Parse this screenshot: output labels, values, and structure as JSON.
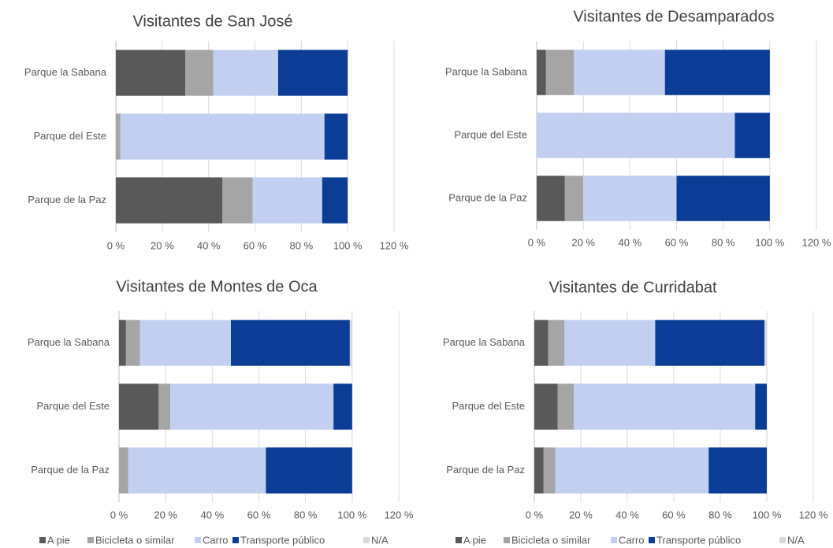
{
  "chart_data": [
    {
      "type": "bar",
      "title": "Visitantes de San José",
      "grid": true,
      "categories": [
        "Parque la Sabana",
        "Parque del Este",
        "Parque de la Paz"
      ],
      "series": [
        {
          "color": "#595959",
          "values": [
            30,
            0,
            46
          ]
        },
        {
          "color": "#a5a5a5",
          "values": [
            12,
            2,
            13
          ]
        },
        {
          "color": "#c3cff0",
          "values": [
            28,
            88,
            30
          ]
        },
        {
          "color": "#0b3c96",
          "values": [
            30,
            10,
            11
          ]
        },
        {
          "color": "#d9d9d9",
          "values": [
            0,
            0,
            0
          ]
        }
      ],
      "xlim": [
        0,
        120
      ],
      "xticks": [
        {
          "value": 0,
          "label": "0 %"
        },
        {
          "value": 20,
          "label": "20 %"
        },
        {
          "value": 40,
          "label": "40 %"
        },
        {
          "value": 60,
          "label": "60 %"
        },
        {
          "value": 80,
          "label": "80 %"
        },
        {
          "value": 100,
          "label": "100 %"
        },
        {
          "value": 120,
          "label": "120 %"
        }
      ]
    },
    {
      "type": "bar",
      "title": "Visitantes de Desamparados",
      "grid": true,
      "categories": [
        "Parque la Sabana",
        "Parque del Este",
        "Parque de la Paz"
      ],
      "series": [
        {
          "color": "#595959",
          "values": [
            4,
            0,
            12
          ]
        },
        {
          "color": "#a5a5a5",
          "values": [
            12,
            0,
            8
          ]
        },
        {
          "color": "#c3cff0",
          "values": [
            39,
            85,
            40
          ]
        },
        {
          "color": "#0b3c96",
          "values": [
            45,
            15,
            40
          ]
        },
        {
          "color": "#d9d9d9",
          "values": [
            0,
            0,
            0
          ]
        }
      ],
      "xlim": [
        0,
        120
      ],
      "xticks": [
        {
          "value": 0,
          "label": "0 %"
        },
        {
          "value": 20,
          "label": "20 %"
        },
        {
          "value": 40,
          "label": "40 %"
        },
        {
          "value": 60,
          "label": "60 %"
        },
        {
          "value": 80,
          "label": "80 %"
        },
        {
          "value": 100,
          "label": "100 %"
        },
        {
          "value": 120,
          "label": "120 %"
        }
      ]
    },
    {
      "type": "bar",
      "title": "Visitantes de Montes de Oca",
      "grid": true,
      "legend": "bottom",
      "categories": [
        "Parque la Sabana",
        "Parque del Este",
        "Parque de la Paz"
      ],
      "series": [
        {
          "name": "A pie",
          "color": "#595959",
          "values": [
            3,
            17,
            0
          ]
        },
        {
          "name": "Bicicleta o similar",
          "color": "#a5a5a5",
          "values": [
            6,
            5,
            4
          ]
        },
        {
          "name": "Carro",
          "color": "#c3cff0",
          "values": [
            39,
            70,
            59
          ]
        },
        {
          "name": "Transporte público",
          "color": "#0b3c96",
          "values": [
            51,
            8,
            37
          ]
        },
        {
          "name": "N/A",
          "color": "#d9d9d9",
          "values": [
            1,
            0,
            0
          ]
        }
      ],
      "xlim": [
        0,
        120
      ],
      "xticks": [
        {
          "value": 0,
          "label": "0 %"
        },
        {
          "value": 20,
          "label": "20 %"
        },
        {
          "value": 40,
          "label": "40 %"
        },
        {
          "value": 60,
          "label": "60 %"
        },
        {
          "value": 80,
          "label": "80 %"
        },
        {
          "value": 100,
          "label": "100 %"
        },
        {
          "value": 120,
          "label": "120 %"
        }
      ]
    },
    {
      "type": "bar",
      "title": "Visitantes de Curridabat",
      "grid": true,
      "legend": "bottom",
      "categories": [
        "Parque la Sabana",
        "Parque del Este",
        "Parque de la Paz"
      ],
      "series": [
        {
          "name": "A pie",
          "color": "#595959",
          "values": [
            6,
            10,
            4
          ]
        },
        {
          "name": "Bicicleta o similar",
          "color": "#a5a5a5",
          "values": [
            7,
            7,
            5
          ]
        },
        {
          "name": "Carro",
          "color": "#c3cff0",
          "values": [
            39,
            78,
            66
          ]
        },
        {
          "name": "Transporte público",
          "color": "#0b3c96",
          "values": [
            47,
            5,
            25
          ]
        },
        {
          "name": "N/A",
          "color": "#d9d9d9",
          "values": [
            1,
            0,
            0
          ]
        }
      ],
      "xlim": [
        0,
        120
      ],
      "xticks": [
        {
          "value": 0,
          "label": "0 %"
        },
        {
          "value": 20,
          "label": "20 %"
        },
        {
          "value": 40,
          "label": "40 %"
        },
        {
          "value": 60,
          "label": "60 %"
        },
        {
          "value": 80,
          "label": "80 %"
        },
        {
          "value": 100,
          "label": "100 %"
        },
        {
          "value": 120,
          "label": "120 %"
        }
      ]
    }
  ]
}
